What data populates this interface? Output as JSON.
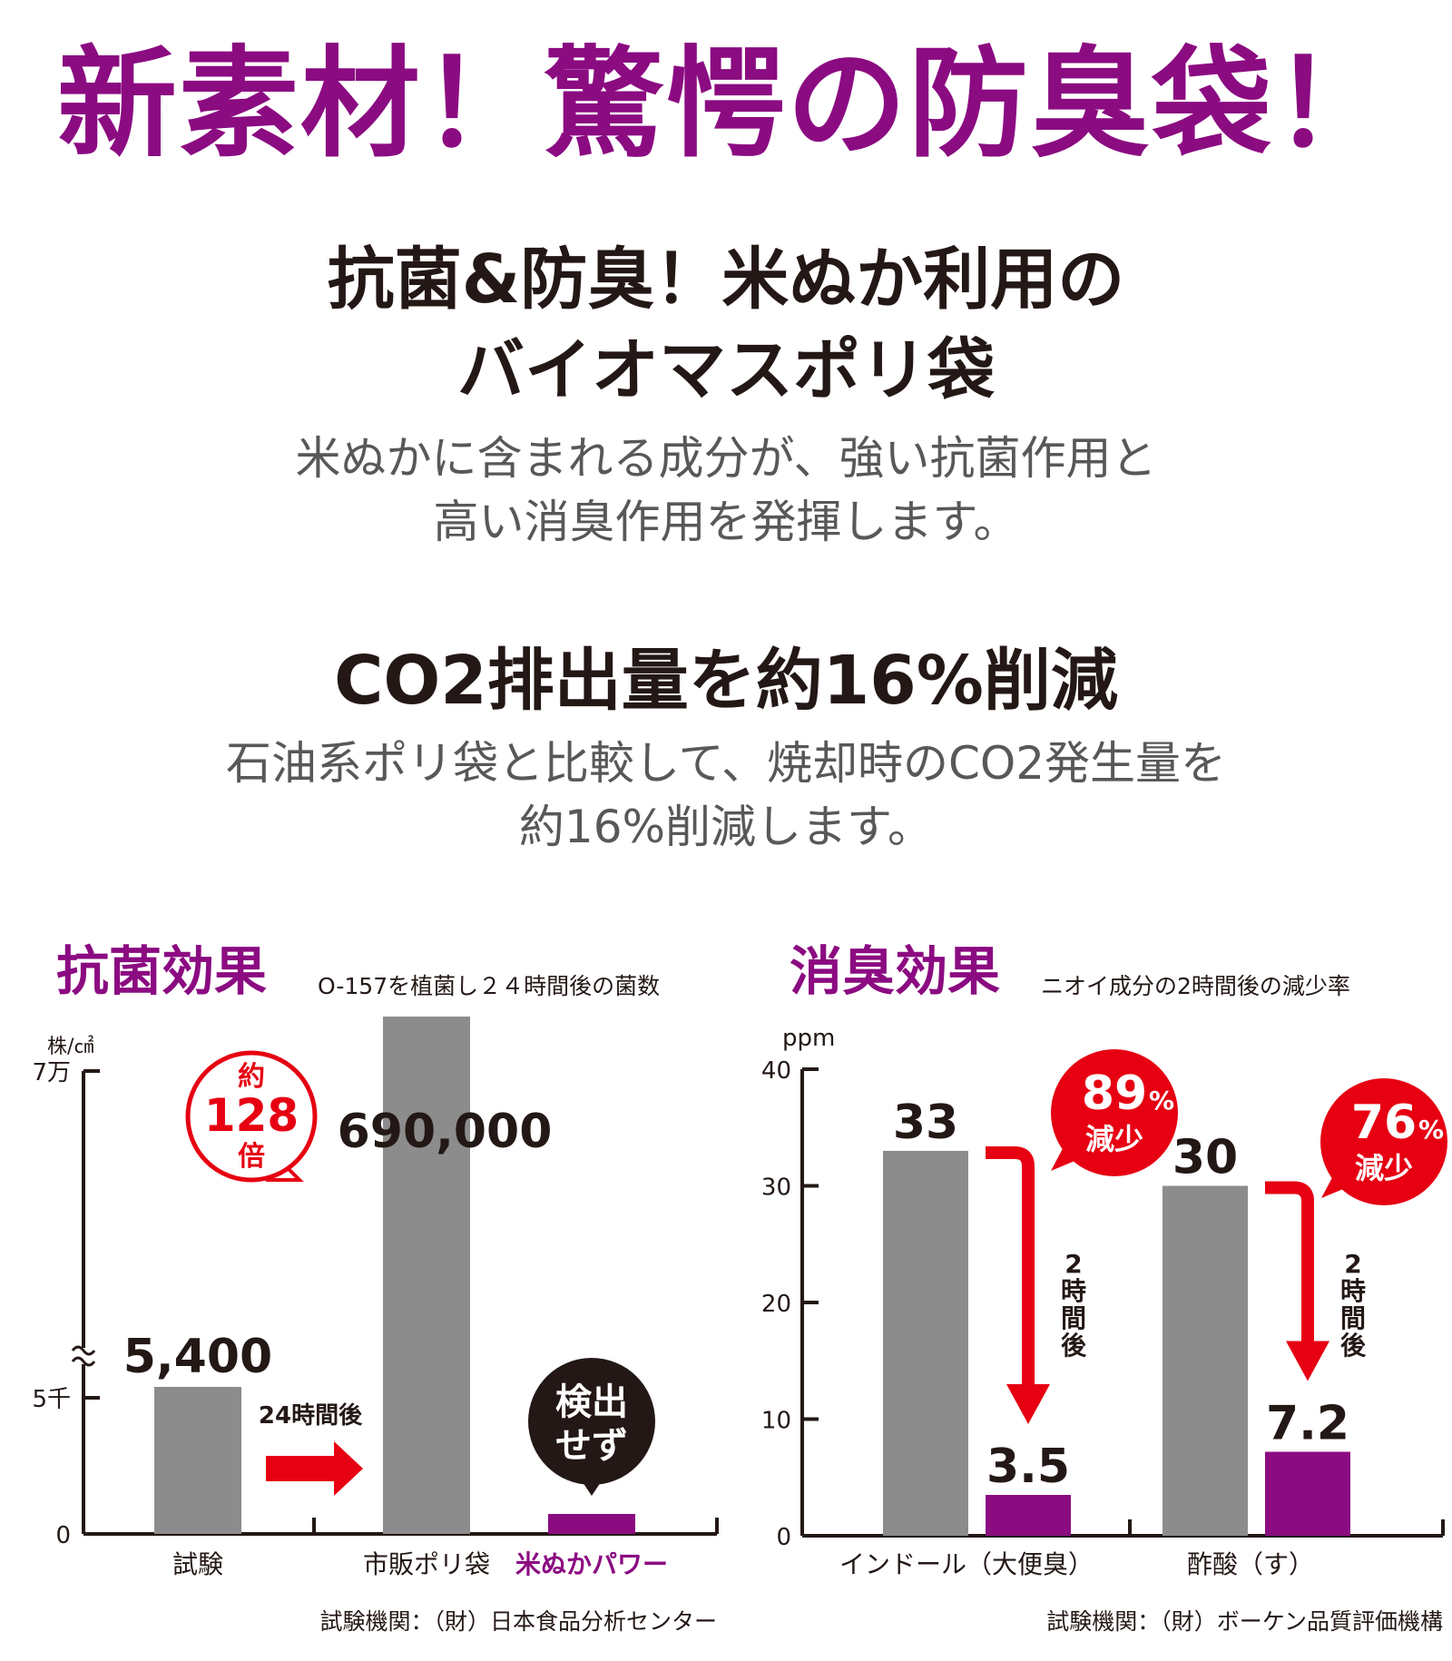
{
  "colors": {
    "purple": "#8b0b81",
    "gray_bar": "#8c8c8c",
    "red": "#e60012",
    "dark": "#231815",
    "text_gray": "#595757"
  },
  "headline": "新素材！驚愕の防臭袋！",
  "section1": {
    "title_lines": [
      "抗菌&防臭！米ぬか利用の",
      "バイオマスポリ袋"
    ],
    "body_lines": [
      "米ぬかに含まれる成分が、強い抗菌作用と",
      "高い消臭作用を発揮します。"
    ]
  },
  "section2": {
    "title": "CO2排出量を約16%削減",
    "body_lines": [
      "石油系ポリ袋と比較して、焼却時のCO2発生量を",
      "約16%削減します。"
    ]
  },
  "chart_data": [
    {
      "type": "bar",
      "title": "抗菌効果",
      "subtitle": "O-157を植菌し２４時間後の菌数",
      "ylabel": "株/㎠",
      "y_ticks": [
        "7万",
        "5千",
        "0"
      ],
      "axis_break": true,
      "categories": [
        "試験",
        "市販ポリ袋",
        "米ぬかパワー"
      ],
      "values": [
        5400,
        690000,
        0
      ],
      "value_labels": [
        "5,400",
        "690,000",
        ""
      ],
      "arrow_label": "24時間後",
      "badge_ratio": {
        "line1": "約",
        "line2": "128",
        "line3": "倍"
      },
      "badge_none": {
        "line1": "検出",
        "line2": "せず"
      },
      "source": "試験機関：（財）日本食品分析センター"
    },
    {
      "type": "bar",
      "title": "消臭効果",
      "subtitle": "ニオイ成分の2時間後の減少率",
      "ylabel": "ppm",
      "ylim": [
        0,
        40
      ],
      "y_ticks": [
        "40",
        "30",
        "20",
        "10",
        "0"
      ],
      "categories": [
        "インドール（大便臭）",
        "酢酸（す）"
      ],
      "series": [
        {
          "values": [
            33,
            30
          ],
          "labels": [
            "33",
            "30"
          ]
        },
        {
          "values": [
            3.5,
            7.2
          ],
          "labels": [
            "3.5",
            "7.2"
          ]
        }
      ],
      "arrow_label": "2時間後",
      "reduction_badges": [
        {
          "pct": "89",
          "pct_sign": "%",
          "text": "減少"
        },
        {
          "pct": "76",
          "pct_sign": "%",
          "text": "減少"
        }
      ],
      "source": "試験機関：（財）ボーケン品質評価機構"
    }
  ]
}
